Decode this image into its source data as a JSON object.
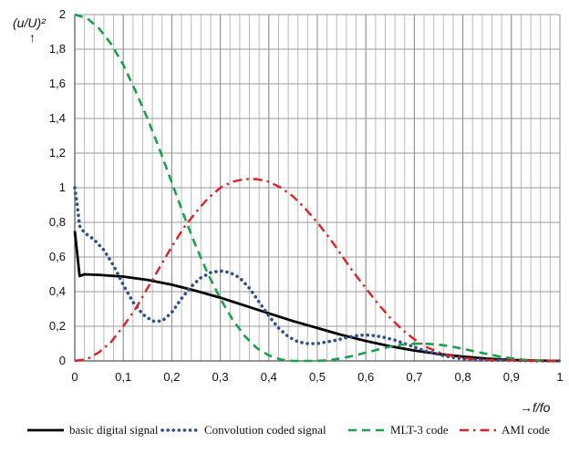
{
  "chart_data": {
    "type": "line",
    "title": "",
    "ylabel": "(u/U)²",
    "ylabel_arrow": "↑",
    "xlabel": "→f/fo",
    "xlim": [
      0,
      1
    ],
    "ylim": [
      0,
      2
    ],
    "x_ticks": [
      "0",
      "0,1",
      "0,2",
      "0,3",
      "0,4",
      "0,5",
      "0,6",
      "0,7",
      "0,8",
      "0,9",
      "1"
    ],
    "x_tick_values": [
      0,
      0.1,
      0.2,
      0.3,
      0.4,
      0.5,
      0.6,
      0.7,
      0.8,
      0.9,
      1
    ],
    "y_ticks": [
      "0",
      "0,2",
      "0,4",
      "0,6",
      "0,8",
      "1",
      "1,2",
      "1,4",
      "1,6",
      "1,8",
      "2"
    ],
    "y_tick_values": [
      0,
      0.2,
      0.4,
      0.6,
      0.8,
      1,
      1.2,
      1.4,
      1.6,
      1.8,
      2
    ],
    "grid": true,
    "minor_grid_x": 0.02,
    "legend_position": "bottom",
    "series": [
      {
        "name": "basic digital signal",
        "color": "#000000",
        "style": "solid",
        "x": [
          0,
          0.005,
          0.01,
          0.02,
          0.05,
          0.1,
          0.15,
          0.2,
          0.25,
          0.3,
          0.35,
          0.4,
          0.45,
          0.5,
          0.55,
          0.6,
          0.65,
          0.7,
          0.75,
          0.8,
          0.85,
          0.9,
          0.95,
          1.0
        ],
        "y": [
          0.75,
          0.62,
          0.49,
          0.5,
          0.497,
          0.487,
          0.468,
          0.44,
          0.405,
          0.365,
          0.32,
          0.275,
          0.23,
          0.19,
          0.15,
          0.115,
          0.085,
          0.06,
          0.04,
          0.025,
          0.013,
          0.006,
          0.002,
          0.0
        ]
      },
      {
        "name": "Convolution coded signal",
        "color": "#2f4f8f",
        "style": "dotted",
        "x": [
          0,
          0.005,
          0.01,
          0.02,
          0.04,
          0.06,
          0.08,
          0.1,
          0.12,
          0.14,
          0.16,
          0.18,
          0.2,
          0.22,
          0.24,
          0.26,
          0.28,
          0.3,
          0.32,
          0.34,
          0.36,
          0.38,
          0.4,
          0.42,
          0.44,
          0.46,
          0.48,
          0.5,
          0.52,
          0.54,
          0.56,
          0.58,
          0.6,
          0.62,
          0.64,
          0.66,
          0.68,
          0.7,
          0.72,
          0.74,
          0.76,
          0.78,
          0.8,
          0.82,
          0.84,
          0.86,
          0.88,
          0.9,
          0.92,
          0.94,
          0.96,
          0.98,
          1.0
        ],
        "y": [
          1.0,
          0.9,
          0.78,
          0.74,
          0.7,
          0.64,
          0.55,
          0.44,
          0.34,
          0.27,
          0.23,
          0.23,
          0.28,
          0.36,
          0.43,
          0.48,
          0.51,
          0.52,
          0.51,
          0.48,
          0.42,
          0.34,
          0.26,
          0.19,
          0.14,
          0.11,
          0.1,
          0.1,
          0.11,
          0.12,
          0.135,
          0.145,
          0.15,
          0.145,
          0.135,
          0.12,
          0.1,
          0.08,
          0.06,
          0.045,
          0.03,
          0.02,
          0.012,
          0.008,
          0.005,
          0.004,
          0.004,
          0.003,
          0.002,
          0.001,
          0.0,
          0.0,
          0.0
        ]
      },
      {
        "name": "MLT-3 code",
        "color": "#1aa04a",
        "style": "dashed",
        "x": [
          0,
          0.025,
          0.05,
          0.075,
          0.1,
          0.125,
          0.15,
          0.175,
          0.2,
          0.225,
          0.25,
          0.275,
          0.3,
          0.325,
          0.35,
          0.375,
          0.4,
          0.425,
          0.45,
          0.475,
          0.5,
          0.525,
          0.55,
          0.575,
          0.6,
          0.625,
          0.65,
          0.675,
          0.7,
          0.725,
          0.75,
          0.775,
          0.8,
          0.825,
          0.85,
          0.875,
          0.9,
          0.925,
          0.95,
          0.975,
          1.0
        ],
        "y": [
          2.0,
          1.98,
          1.92,
          1.83,
          1.71,
          1.56,
          1.4,
          1.22,
          1.03,
          0.84,
          0.66,
          0.5,
          0.36,
          0.24,
          0.145,
          0.075,
          0.032,
          0.008,
          0.0,
          0.0,
          0.0,
          0.004,
          0.015,
          0.03,
          0.048,
          0.066,
          0.082,
          0.094,
          0.1,
          0.099,
          0.094,
          0.084,
          0.07,
          0.055,
          0.04,
          0.026,
          0.015,
          0.007,
          0.002,
          0.0005,
          0.0
        ]
      },
      {
        "name": "AMI code",
        "color": "#e02020",
        "style": "dashdot",
        "x": [
          0,
          0.025,
          0.05,
          0.075,
          0.1,
          0.125,
          0.15,
          0.175,
          0.2,
          0.225,
          0.25,
          0.275,
          0.3,
          0.325,
          0.35,
          0.375,
          0.4,
          0.425,
          0.45,
          0.475,
          0.5,
          0.525,
          0.55,
          0.575,
          0.6,
          0.625,
          0.65,
          0.675,
          0.7,
          0.725,
          0.75,
          0.775,
          0.8,
          0.825,
          0.85,
          0.875,
          0.9,
          0.925,
          0.95,
          0.975,
          1.0
        ],
        "y": [
          0.0,
          0.01,
          0.05,
          0.11,
          0.2,
          0.3,
          0.42,
          0.54,
          0.66,
          0.77,
          0.86,
          0.94,
          1.0,
          1.035,
          1.05,
          1.05,
          1.035,
          1.0,
          0.95,
          0.88,
          0.8,
          0.71,
          0.61,
          0.51,
          0.42,
          0.33,
          0.25,
          0.18,
          0.125,
          0.08,
          0.05,
          0.03,
          0.018,
          0.01,
          0.006,
          0.004,
          0.003,
          0.002,
          0.001,
          0.0,
          0.0
        ]
      }
    ]
  }
}
